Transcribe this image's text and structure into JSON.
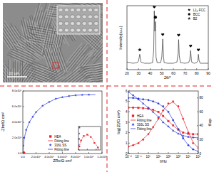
{
  "chart_data": [
    {
      "type": "image",
      "annotations": [
        "10 μm"
      ]
    },
    {
      "type": "line",
      "xlabel": "2θ/°",
      "ylabel": "Intensity(a.u.)",
      "xlim": [
        20,
        90
      ],
      "xticks": [
        20,
        30,
        40,
        50,
        60,
        70,
        80,
        90
      ],
      "ylim": [
        0,
        100
      ],
      "tick_labels": "x",
      "legend": "upper right",
      "x": [
        20,
        25,
        29,
        30,
        31,
        32,
        35,
        40,
        42,
        43,
        43.5,
        44,
        44.5,
        45,
        46,
        49,
        50,
        50.8,
        51.5,
        52,
        55,
        60,
        63,
        64,
        64.5,
        65,
        66,
        70,
        73,
        74,
        74.8,
        75.5,
        76,
        78,
        80,
        81,
        81.5,
        82,
        83,
        85,
        90
      ],
      "series": [
        {
          "type": "line",
          "color": "#333333",
          "values": [
            12,
            10,
            11,
            14,
            24,
            12,
            10,
            10,
            11,
            30,
            92,
            60,
            75,
            20,
            11,
            11,
            20,
            48,
            20,
            11,
            10,
            10,
            12,
            25,
            47,
            22,
            11,
            10,
            11,
            15,
            30,
            14,
            11,
            10,
            11,
            14,
            24,
            15,
            10,
            10,
            10
          ]
        },
        {
          "name": "L1₂ FCC",
          "type": "scatter",
          "marker": "heart",
          "color": "#000000",
          "x": [
            43.5,
            50.8,
            64.5,
            74.8,
            81.5
          ],
          "values": [
            98,
            55,
            54,
            37,
            31
          ]
        },
        {
          "name": "BCC",
          "type": "scatter",
          "marker": "circle",
          "color": "#000000",
          "x": [
            44.5
          ],
          "values": [
            82
          ]
        },
        {
          "name": "B2",
          "type": "scatter",
          "marker": "star",
          "color": "#000000",
          "x": [
            31
          ],
          "values": [
            31
          ]
        }
      ]
    },
    {
      "type": "scatter",
      "xlabel": "ZRe/Ω cm²",
      "ylabel": "-ZIm/Ω cm²",
      "xlim": [
        0,
        1200000
      ],
      "xticks": [
        {
          "value": 0,
          "label": "0.0"
        },
        {
          "value": 200000,
          "label": "2.0x10⁵"
        },
        {
          "value": 400000,
          "label": "4.0x10⁵"
        },
        {
          "value": 600000,
          "label": "6.0x10⁵"
        },
        {
          "value": 800000,
          "label": "8.0x10⁵"
        },
        {
          "value": 1000000,
          "label": "1.0x10⁶"
        },
        {
          "value": 1200000,
          "label": "1.2x10⁶"
        }
      ],
      "ylim": [
        0,
        800000
      ],
      "yticks": [
        {
          "value": 0,
          "label": "0.0"
        },
        {
          "value": 200000,
          "label": "2.0x10⁵"
        },
        {
          "value": 400000,
          "label": "4.0x10⁵"
        },
        {
          "value": 600000,
          "label": "6.0x10⁵"
        },
        {
          "value": 800000,
          "label": "8.0x10⁵"
        }
      ],
      "legend": "lower center",
      "series": [
        {
          "name": "HEA",
          "type": "scatter",
          "marker": "square",
          "color": "#e8232a",
          "x": [
            1000,
            3000,
            6000,
            10000,
            14000,
            18000,
            22000
          ],
          "values": [
            3000,
            8000,
            12000,
            13000,
            11000,
            6000,
            2000
          ]
        },
        {
          "name": "Fitting line",
          "type": "line",
          "color": "#e8232a",
          "x": [
            0,
            2000,
            5000,
            10000,
            15000,
            20000,
            23000
          ],
          "values": [
            0,
            6000,
            11000,
            13200,
            10500,
            4500,
            0
          ]
        },
        {
          "name": "316L SS",
          "type": "scatter",
          "marker": "star",
          "color": "#2a3ad8",
          "x": [
            5000,
            20000,
            50000,
            100000,
            150000,
            200000,
            300000,
            400000,
            500000,
            600000,
            700000,
            800000,
            900000,
            1000000
          ],
          "values": [
            100000,
            200000,
            300000,
            400000,
            470000,
            530000,
            610000,
            660000,
            700000,
            720000,
            735000,
            745000,
            750000,
            752000
          ]
        },
        {
          "name": "Fitting line",
          "type": "line",
          "color": "#2a3ad8",
          "x": [
            0,
            20000,
            50000,
            100000,
            200000,
            300000,
            400000,
            500000,
            600000,
            700000,
            800000,
            900000,
            1000000,
            1100000
          ],
          "values": [
            0,
            190000,
            295000,
            405000,
            530000,
            610000,
            660000,
            700000,
            720000,
            735000,
            745000,
            750000,
            752000,
            753000
          ]
        }
      ]
    },
    {
      "type": "scatter",
      "xlim": [
        0,
        25000
      ],
      "xticks": [
        0,
        10000,
        20000
      ],
      "ylim": [
        0,
        20000
      ],
      "yticks": [
        0,
        10000,
        20000
      ],
      "tick_labels": false,
      "series": [
        {
          "type": "scatter",
          "marker": "square",
          "color": "#e8232a",
          "x": [
            1000,
            3000,
            6000,
            10000,
            14000,
            18000,
            22000
          ],
          "values": [
            3000,
            8000,
            12000,
            13000,
            11000,
            6000,
            2000
          ]
        },
        {
          "type": "line",
          "line_style": "dashed",
          "color": "#e8232a",
          "x": [
            0,
            2000,
            5000,
            10000,
            15000,
            20000,
            23000
          ],
          "values": [
            0,
            6000,
            11000,
            13200,
            10500,
            4500,
            0
          ]
        },
        {
          "type": "scatter",
          "marker": "star",
          "color": "#2a3ad8",
          "x": [
            300,
            600,
            900,
            1200
          ],
          "values": [
            4000,
            9000,
            14000,
            19000
          ]
        }
      ]
    },
    {
      "type": "line",
      "log": "x",
      "xlabel": "f/Hz",
      "ylabel": "log(|Z|/Ω cm²)",
      "y2label": "-deg.",
      "xlim": [
        0.01,
        100000
      ],
      "xticks": [
        {
          "value": 0.01,
          "label": "10⁻²"
        },
        {
          "value": 0.1,
          "label": "10⁻¹"
        },
        {
          "value": 1,
          "label": "10⁰"
        },
        {
          "value": 10,
          "label": "10¹"
        },
        {
          "value": 100,
          "label": "10²"
        },
        {
          "value": 1000,
          "label": "10³"
        },
        {
          "value": 10000,
          "label": "10⁴"
        },
        {
          "value": 100000,
          "label": "10⁵"
        }
      ],
      "ylim": [
        0,
        6
      ],
      "yticks": [
        0,
        1,
        2,
        3,
        4,
        5,
        6
      ],
      "y2lim": [
        0,
        90
      ],
      "y2ticks": [
        0,
        20,
        40,
        60,
        80
      ],
      "legend": "center left",
      "x": [
        0.01,
        0.03,
        0.1,
        0.3,
        1,
        3,
        10,
        30,
        100,
        300,
        1000,
        3000,
        10000,
        30000,
        100000
      ],
      "series": [
        {
          "name": "HEA",
          "type": "scatter",
          "marker": "square",
          "color": "#e8232a",
          "values": [
            4.4,
            4.4,
            4.38,
            4.35,
            4.3,
            4.2,
            4.0,
            3.6,
            3.1,
            2.7,
            2.3,
            2.0,
            1.9,
            1.85,
            1.85
          ]
        },
        {
          "name": "Fitting line",
          "type": "line",
          "color": "#e8232a",
          "values": [
            4.41,
            4.4,
            4.39,
            4.36,
            4.31,
            4.2,
            3.98,
            3.62,
            3.12,
            2.68,
            2.3,
            2.02,
            1.9,
            1.86,
            1.85
          ]
        },
        {
          "name": "316L SS",
          "type": "scatter",
          "marker": "triangle",
          "color": "#2a3ad8",
          "values": [
            5.9,
            5.6,
            5.2,
            4.8,
            4.4,
            4.0,
            3.5,
            3.0,
            2.6,
            2.2,
            1.9,
            1.7,
            1.6,
            1.55,
            1.5
          ]
        },
        {
          "name": "Fitting line",
          "type": "line",
          "color": "#2a3ad8",
          "values": [
            5.92,
            5.58,
            5.2,
            4.8,
            4.38,
            3.98,
            3.52,
            3.02,
            2.58,
            2.2,
            1.9,
            1.72,
            1.6,
            1.55,
            1.5
          ]
        },
        {
          "type": "scatter",
          "marker": "circle",
          "axis": "y2",
          "color": "#e8232a",
          "values": [
            10,
            12,
            15,
            20,
            28,
            38,
            50,
            62,
            72,
            75,
            68,
            50,
            30,
            15,
            8
          ]
        },
        {
          "type": "line",
          "axis": "y2",
          "color": "#e8232a",
          "values": [
            10,
            12,
            15,
            21,
            28,
            38,
            50,
            62,
            71,
            74,
            67,
            50,
            31,
            16,
            8
          ]
        },
        {
          "type": "scatter",
          "marker": "circle",
          "axis": "y2",
          "color": "#2a3ad8",
          "values": [
            80,
            80,
            79,
            78,
            77,
            75,
            72,
            68,
            60,
            48,
            35,
            22,
            12,
            6,
            3
          ]
        },
        {
          "type": "line",
          "axis": "y2",
          "color": "#2a3ad8",
          "values": [
            80,
            80,
            79,
            78,
            77,
            75,
            72,
            67,
            60,
            48,
            35,
            22,
            12,
            6,
            3
          ]
        }
      ]
    }
  ]
}
